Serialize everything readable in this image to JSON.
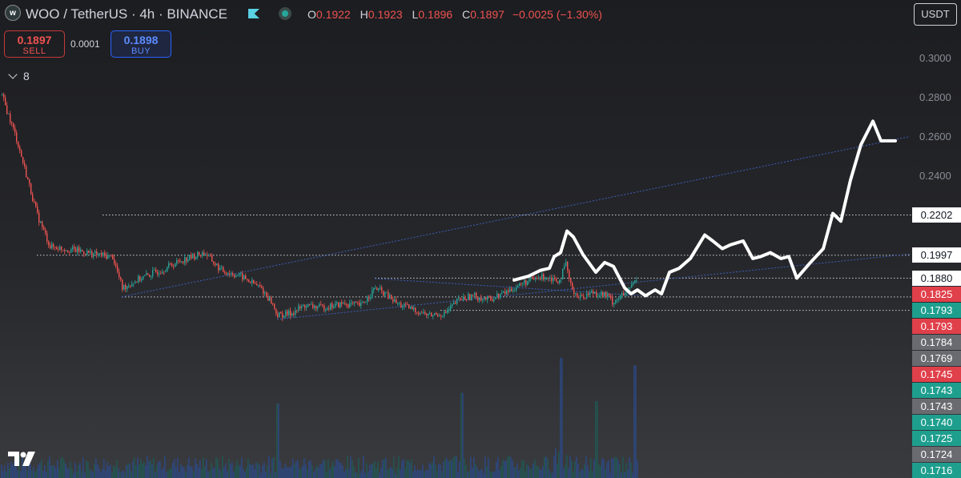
{
  "header": {
    "title": "WOO / TetherUS · 4h · BINANCE",
    "ohlc": [
      {
        "key": "O",
        "value": "0.1922"
      },
      {
        "key": "H",
        "value": "0.1923"
      },
      {
        "key": "L",
        "value": "0.1896"
      },
      {
        "key": "C",
        "value": "0.1897"
      }
    ],
    "change": "−0.0025 (−1.30%)",
    "logo_text": "w",
    "icons": [
      "woo-logo-icon",
      "flag-icon",
      "market-status-icon"
    ]
  },
  "trade": {
    "sell_price": "0.1897",
    "sell_label": "SELL",
    "spread": "0.0001",
    "buy_price": "0.1898",
    "buy_label": "BUY"
  },
  "indicators_toggle": {
    "count": "8"
  },
  "currency_button": "USDT",
  "colors": {
    "up": "#26a69a",
    "down": "#ef5350",
    "trendline": "#3d5fb8",
    "drawing": "#ffffff"
  },
  "chart_data": {
    "type": "candlestick",
    "symbol": "WOO/USDT",
    "timeframe": "4h",
    "exchange": "BINANCE",
    "ylim": [
      0.171,
      0.307
    ],
    "y_ticks": [
      0.3,
      0.28,
      0.26,
      0.24
    ],
    "price_labels": [
      {
        "value": "0.2202",
        "style": "white"
      },
      {
        "value": "0.1997",
        "style": "white"
      },
      {
        "value": "0.1880",
        "style": "white"
      },
      {
        "value": "0.1825",
        "style": "red"
      },
      {
        "value": "0.1793",
        "style": "green"
      },
      {
        "value": "0.1793",
        "style": "red"
      },
      {
        "value": "0.1784",
        "style": "gray"
      },
      {
        "value": "0.1769",
        "style": "gray"
      },
      {
        "value": "0.1745",
        "style": "red"
      },
      {
        "value": "0.1743",
        "style": "green"
      },
      {
        "value": "0.1743",
        "style": "gray"
      },
      {
        "value": "0.1740",
        "style": "green"
      },
      {
        "value": "0.1725",
        "style": "green"
      },
      {
        "value": "0.1724",
        "style": "gray"
      },
      {
        "value": "0.1716",
        "style": "green"
      }
    ],
    "price_path": [
      [
        0,
        0.283
      ],
      [
        20,
        0.259
      ],
      [
        46,
        0.22
      ],
      [
        62,
        0.204
      ],
      [
        80,
        0.203
      ],
      [
        98,
        0.202
      ],
      [
        120,
        0.2
      ],
      [
        140,
        0.199
      ],
      [
        152,
        0.183
      ],
      [
        175,
        0.188
      ],
      [
        200,
        0.192
      ],
      [
        225,
        0.197
      ],
      [
        255,
        0.201
      ],
      [
        275,
        0.192
      ],
      [
        300,
        0.189
      ],
      [
        325,
        0.183
      ],
      [
        338,
        0.176
      ],
      [
        346,
        0.169
      ],
      [
        362,
        0.17
      ],
      [
        380,
        0.174
      ],
      [
        400,
        0.173
      ],
      [
        430,
        0.175
      ],
      [
        450,
        0.174
      ],
      [
        468,
        0.183
      ],
      [
        480,
        0.18
      ],
      [
        495,
        0.175
      ],
      [
        515,
        0.172
      ],
      [
        535,
        0.169
      ],
      [
        555,
        0.17
      ],
      [
        572,
        0.177
      ],
      [
        590,
        0.179
      ],
      [
        610,
        0.177
      ],
      [
        632,
        0.181
      ],
      [
        655,
        0.186
      ],
      [
        680,
        0.189
      ],
      [
        698,
        0.187
      ],
      [
        706,
        0.195
      ],
      [
        712,
        0.184
      ],
      [
        722,
        0.178
      ],
      [
        740,
        0.181
      ],
      [
        758,
        0.179
      ],
      [
        764,
        0.176
      ],
      [
        780,
        0.18
      ],
      [
        795,
        0.188
      ]
    ],
    "horizontal_levels": [
      {
        "price": 0.2202,
        "x_from": 128
      },
      {
        "price": 0.1997,
        "x_from": 46
      },
      {
        "price": 0.188,
        "x_from": 468
      },
      {
        "price": 0.1784,
        "x_from": 152
      },
      {
        "price": 0.1716,
        "x_from": 550
      }
    ],
    "trendlines": [
      {
        "from": [
          152,
          0.1785
        ],
        "to": [
          1136,
          0.2602
        ]
      },
      {
        "from": [
          346,
          0.167
        ],
        "to": [
          1136,
          0.2003
        ]
      },
      {
        "from": [
          468,
          0.1878
        ],
        "to": [
          800,
          0.1791
        ]
      }
    ],
    "projection_path": [
      [
        642,
        0.187
      ],
      [
        660,
        0.189
      ],
      [
        675,
        0.192
      ],
      [
        686,
        0.193
      ],
      [
        692,
        0.199
      ],
      [
        700,
        0.201
      ],
      [
        708,
        0.212
      ],
      [
        716,
        0.209
      ],
      [
        728,
        0.2
      ],
      [
        744,
        0.191
      ],
      [
        755,
        0.196
      ],
      [
        766,
        0.194
      ],
      [
        780,
        0.183
      ],
      [
        788,
        0.18
      ],
      [
        796,
        0.182
      ],
      [
        806,
        0.179
      ],
      [
        818,
        0.182
      ],
      [
        826,
        0.18
      ],
      [
        836,
        0.191
      ],
      [
        848,
        0.193
      ],
      [
        862,
        0.198
      ],
      [
        880,
        0.21
      ],
      [
        890,
        0.207
      ],
      [
        902,
        0.203
      ],
      [
        912,
        0.205
      ],
      [
        928,
        0.207
      ],
      [
        940,
        0.198
      ],
      [
        950,
        0.199
      ],
      [
        962,
        0.201
      ],
      [
        975,
        0.198
      ],
      [
        985,
        0.199
      ],
      [
        995,
        0.188
      ],
      [
        1012,
        0.196
      ],
      [
        1028,
        0.203
      ],
      [
        1040,
        0.221
      ],
      [
        1050,
        0.217
      ],
      [
        1062,
        0.238
      ],
      [
        1075,
        0.256
      ],
      [
        1090,
        0.268
      ],
      [
        1100,
        0.258
      ],
      [
        1118,
        0.258
      ]
    ],
    "volume_spikes": [
      {
        "x": 346,
        "height": 0.62
      },
      {
        "x": 576,
        "height": 0.71
      },
      {
        "x": 700,
        "height": 1.0
      },
      {
        "x": 744,
        "height": 0.64
      },
      {
        "x": 792,
        "height": 0.94
      }
    ]
  }
}
